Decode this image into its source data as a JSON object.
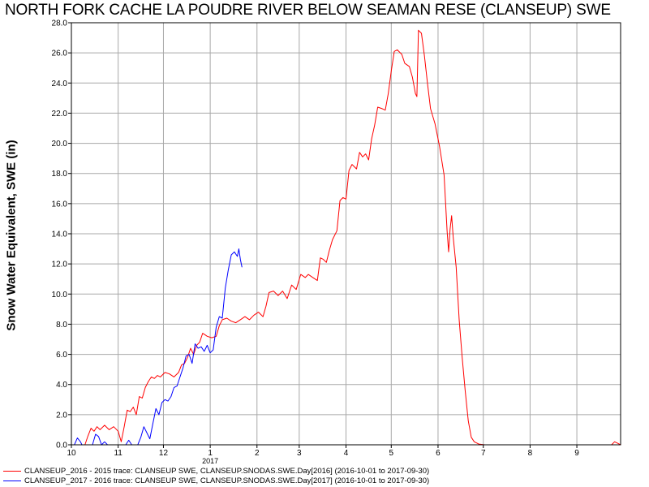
{
  "chart_data": {
    "type": "line",
    "title": "NORTH FORK CACHE LA POUDRE RIVER BELOW SEAMAN RESE (CLANSEUP) SWE",
    "ylabel": "Snow Water Equivalent, SWE (in)",
    "xlabel": "",
    "x_domain": [
      "2016-10-01",
      "2017-09-30"
    ],
    "ylim": [
      0,
      28
    ],
    "y_ticks": [
      "0.0",
      "2.0",
      "4.0",
      "6.0",
      "8.0",
      "10.0",
      "12.0",
      "14.0",
      "16.0",
      "18.0",
      "20.0",
      "22.0",
      "24.0",
      "26.0",
      "28.0"
    ],
    "x_ticks": [
      {
        "label": "10",
        "date": "2016-10-01"
      },
      {
        "label": "11",
        "date": "2016-11-01"
      },
      {
        "label": "12",
        "date": "2016-12-01"
      },
      {
        "label": "1",
        "date": "2017-01-01"
      },
      {
        "label": "2",
        "date": "2017-02-01"
      },
      {
        "label": "3",
        "date": "2017-03-01"
      },
      {
        "label": "4",
        "date": "2017-04-01"
      },
      {
        "label": "5",
        "date": "2017-05-01"
      },
      {
        "label": "6",
        "date": "2017-06-01"
      },
      {
        "label": "7",
        "date": "2017-07-01"
      },
      {
        "label": "8",
        "date": "2017-08-01"
      },
      {
        "label": "9",
        "date": "2017-09-01"
      }
    ],
    "year_label": {
      "label": "2017",
      "date": "2017-01-01"
    },
    "grid": true,
    "legend_position": "bottom-left",
    "series": [
      {
        "name": "CLANSEUP_2016 - 2015 trace: CLANSEUP SWE, CLANSEUP.SNODAS.SWE.Day[2016] (2016-10-01 to 2017-09-30)",
        "color": "#ff0000",
        "points": [
          [
            "2016-10-01",
            0
          ],
          [
            "2016-10-10",
            0
          ],
          [
            "2016-10-12",
            0.6
          ],
          [
            "2016-10-14",
            1.1
          ],
          [
            "2016-10-16",
            0.9
          ],
          [
            "2016-10-18",
            1.2
          ],
          [
            "2016-10-20",
            1.0
          ],
          [
            "2016-10-23",
            1.3
          ],
          [
            "2016-10-26",
            1.0
          ],
          [
            "2016-10-29",
            1.2
          ],
          [
            "2016-11-01",
            0.9
          ],
          [
            "2016-11-03",
            0.2
          ],
          [
            "2016-11-05",
            1.2
          ],
          [
            "2016-11-07",
            2.3
          ],
          [
            "2016-11-09",
            2.2
          ],
          [
            "2016-11-11",
            2.5
          ],
          [
            "2016-11-13",
            2.0
          ],
          [
            "2016-11-15",
            3.2
          ],
          [
            "2016-11-17",
            3.1
          ],
          [
            "2016-11-19",
            3.8
          ],
          [
            "2016-11-21",
            4.2
          ],
          [
            "2016-11-23",
            4.5
          ],
          [
            "2016-11-25",
            4.4
          ],
          [
            "2016-11-27",
            4.6
          ],
          [
            "2016-11-29",
            4.5
          ],
          [
            "2016-12-02",
            4.8
          ],
          [
            "2016-12-05",
            4.7
          ],
          [
            "2016-12-08",
            4.5
          ],
          [
            "2016-12-11",
            4.8
          ],
          [
            "2016-12-13",
            5.3
          ],
          [
            "2016-12-15",
            5.4
          ],
          [
            "2016-12-17",
            5.8
          ],
          [
            "2016-12-19",
            6.4
          ],
          [
            "2016-12-21",
            6.0
          ],
          [
            "2016-12-23",
            6.6
          ],
          [
            "2016-12-25",
            6.8
          ],
          [
            "2016-12-27",
            7.4
          ],
          [
            "2016-12-30",
            7.2
          ],
          [
            "2017-01-02",
            7.1
          ],
          [
            "2017-01-05",
            7.2
          ],
          [
            "2017-01-07",
            7.9
          ],
          [
            "2017-01-09",
            8.3
          ],
          [
            "2017-01-12",
            8.4
          ],
          [
            "2017-01-15",
            8.2
          ],
          [
            "2017-01-18",
            8.1
          ],
          [
            "2017-01-21",
            8.3
          ],
          [
            "2017-01-24",
            8.5
          ],
          [
            "2017-01-27",
            8.3
          ],
          [
            "2017-01-30",
            8.6
          ],
          [
            "2017-02-02",
            8.8
          ],
          [
            "2017-02-05",
            8.5
          ],
          [
            "2017-02-07",
            9.2
          ],
          [
            "2017-02-09",
            10.1
          ],
          [
            "2017-02-12",
            10.2
          ],
          [
            "2017-02-15",
            9.9
          ],
          [
            "2017-02-18",
            10.2
          ],
          [
            "2017-02-21",
            9.7
          ],
          [
            "2017-02-24",
            10.6
          ],
          [
            "2017-02-27",
            10.3
          ],
          [
            "2017-03-02",
            11.3
          ],
          [
            "2017-03-05",
            11.1
          ],
          [
            "2017-03-07",
            11.3
          ],
          [
            "2017-03-10",
            11.1
          ],
          [
            "2017-03-13",
            10.9
          ],
          [
            "2017-03-15",
            12.4
          ],
          [
            "2017-03-17",
            12.3
          ],
          [
            "2017-03-19",
            12.1
          ],
          [
            "2017-03-21",
            12.9
          ],
          [
            "2017-03-23",
            13.6
          ],
          [
            "2017-03-26",
            14.2
          ],
          [
            "2017-03-28",
            16.2
          ],
          [
            "2017-03-30",
            16.4
          ],
          [
            "2017-04-01",
            16.3
          ],
          [
            "2017-04-03",
            18.2
          ],
          [
            "2017-04-05",
            18.6
          ],
          [
            "2017-04-08",
            18.3
          ],
          [
            "2017-04-10",
            19.4
          ],
          [
            "2017-04-12",
            19.1
          ],
          [
            "2017-04-14",
            19.3
          ],
          [
            "2017-04-16",
            18.9
          ],
          [
            "2017-04-18",
            20.3
          ],
          [
            "2017-04-20",
            21.2
          ],
          [
            "2017-04-22",
            22.4
          ],
          [
            "2017-04-25",
            22.3
          ],
          [
            "2017-04-27",
            22.2
          ],
          [
            "2017-04-29",
            23.3
          ],
          [
            "2017-05-01",
            24.8
          ],
          [
            "2017-05-03",
            26.1
          ],
          [
            "2017-05-05",
            26.2
          ],
          [
            "2017-05-08",
            25.9
          ],
          [
            "2017-05-10",
            25.3
          ],
          [
            "2017-05-13",
            25.1
          ],
          [
            "2017-05-15",
            24.4
          ],
          [
            "2017-05-17",
            23.3
          ],
          [
            "2017-05-18",
            23.1
          ],
          [
            "2017-05-19",
            27.5
          ],
          [
            "2017-05-21",
            27.3
          ],
          [
            "2017-05-23",
            25.8
          ],
          [
            "2017-05-25",
            24.0
          ],
          [
            "2017-05-27",
            22.3
          ],
          [
            "2017-05-30",
            21.3
          ],
          [
            "2017-06-02",
            19.8
          ],
          [
            "2017-06-05",
            17.9
          ],
          [
            "2017-06-07",
            14.2
          ],
          [
            "2017-06-08",
            12.8
          ],
          [
            "2017-06-09",
            14.3
          ],
          [
            "2017-06-10",
            15.2
          ],
          [
            "2017-06-11",
            13.8
          ],
          [
            "2017-06-13",
            11.8
          ],
          [
            "2017-06-15",
            8.3
          ],
          [
            "2017-06-17",
            5.8
          ],
          [
            "2017-06-19",
            3.6
          ],
          [
            "2017-06-21",
            1.6
          ],
          [
            "2017-06-23",
            0.5
          ],
          [
            "2017-06-25",
            0.2
          ],
          [
            "2017-06-28",
            0.05
          ],
          [
            "2017-07-02",
            0
          ],
          [
            "2017-09-24",
            0
          ],
          [
            "2017-09-26",
            0.2
          ],
          [
            "2017-09-28",
            0.1
          ],
          [
            "2017-09-30",
            0
          ]
        ]
      },
      {
        "name": "CLANSEUP_2017 - 2016 trace: CLANSEUP SWE, CLANSEUP.SNODAS.SWE.Day[2017] (2016-10-01 to 2017-09-30)",
        "color": "#0000ff",
        "points": [
          [
            "2016-10-01",
            0
          ],
          [
            "2016-10-03",
            0
          ],
          [
            "2016-10-05",
            0.45
          ],
          [
            "2016-10-07",
            0.2
          ],
          [
            "2016-10-08",
            0
          ],
          [
            "2016-10-15",
            0
          ],
          [
            "2016-10-17",
            0.7
          ],
          [
            "2016-10-19",
            0.55
          ],
          [
            "2016-10-21",
            0
          ],
          [
            "2016-10-23",
            0.2
          ],
          [
            "2016-10-25",
            0
          ],
          [
            "2016-11-06",
            0
          ],
          [
            "2016-11-08",
            0.3
          ],
          [
            "2016-11-10",
            0
          ],
          [
            "2016-11-14",
            0
          ],
          [
            "2016-11-16",
            0.5
          ],
          [
            "2016-11-18",
            1.2
          ],
          [
            "2016-11-20",
            0.8
          ],
          [
            "2016-11-22",
            0.4
          ],
          [
            "2016-11-24",
            1.4
          ],
          [
            "2016-11-26",
            2.4
          ],
          [
            "2016-11-28",
            2.0
          ],
          [
            "2016-11-30",
            2.8
          ],
          [
            "2016-12-02",
            3.0
          ],
          [
            "2016-12-04",
            2.9
          ],
          [
            "2016-12-06",
            3.2
          ],
          [
            "2016-12-08",
            3.8
          ],
          [
            "2016-12-10",
            3.9
          ],
          [
            "2016-12-12",
            4.5
          ],
          [
            "2016-12-14",
            5.1
          ],
          [
            "2016-12-16",
            5.9
          ],
          [
            "2016-12-18",
            6.0
          ],
          [
            "2016-12-20",
            5.4
          ],
          [
            "2016-12-22",
            6.7
          ],
          [
            "2016-12-24",
            6.4
          ],
          [
            "2016-12-26",
            6.5
          ],
          [
            "2016-12-28",
            6.2
          ],
          [
            "2016-12-30",
            6.6
          ],
          [
            "2017-01-01",
            6.1
          ],
          [
            "2017-01-03",
            6.3
          ],
          [
            "2017-01-05",
            7.8
          ],
          [
            "2017-01-07",
            8.5
          ],
          [
            "2017-01-09",
            8.4
          ],
          [
            "2017-01-11",
            10.4
          ],
          [
            "2017-01-13",
            11.6
          ],
          [
            "2017-01-15",
            12.6
          ],
          [
            "2017-01-17",
            12.8
          ],
          [
            "2017-01-19",
            12.5
          ],
          [
            "2017-01-20",
            13.0
          ],
          [
            "2017-01-21",
            12.3
          ],
          [
            "2017-01-22",
            11.8
          ]
        ]
      }
    ]
  }
}
